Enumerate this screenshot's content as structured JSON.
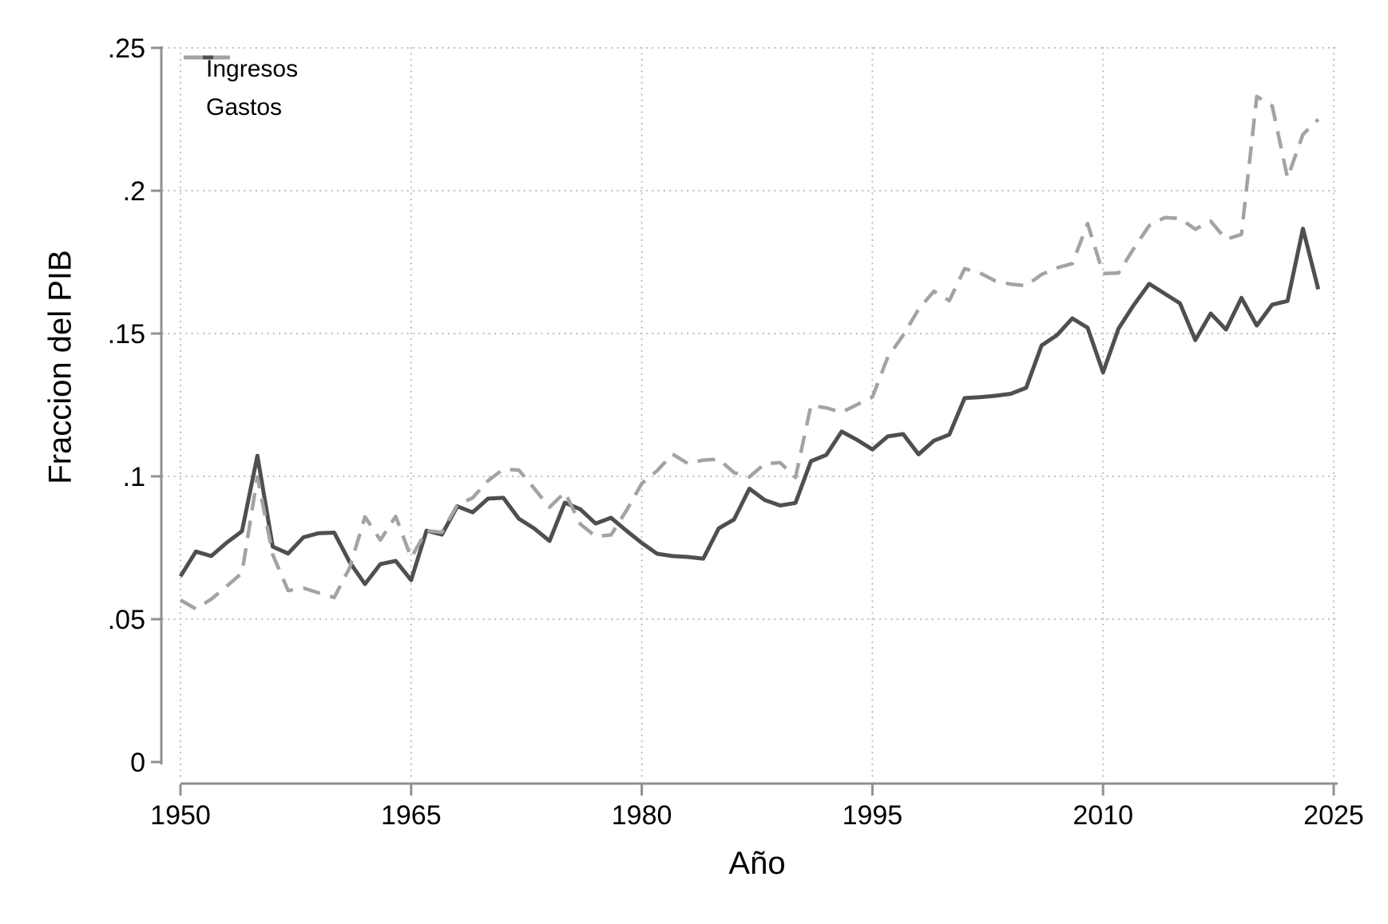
{
  "chart_data": {
    "type": "line",
    "title": "",
    "xlabel": "Año",
    "ylabel": "Fraccion del PIB",
    "legend_position": "top-left-inside",
    "grid": "dotted",
    "xlim": [
      1948.7,
      2025.4
    ],
    "ylim": [
      0,
      0.25
    ],
    "x_ticks": [
      1950,
      1965,
      1980,
      1995,
      2010,
      2025
    ],
    "y_ticks": [
      0,
      0.05,
      0.1,
      0.15,
      0.2,
      0.25
    ],
    "y_tick_labels": [
      "0",
      ".05",
      ".1",
      ".15",
      ".2",
      ".25"
    ],
    "colors": {
      "axis": "#909090",
      "grid": "#bdbdbd",
      "text": "#000000",
      "background": "#ffffff"
    },
    "x": [
      1950,
      1951,
      1952,
      1953,
      1954,
      1955,
      1956,
      1957,
      1958,
      1959,
      1960,
      1961,
      1962,
      1963,
      1964,
      1965,
      1966,
      1967,
      1968,
      1969,
      1970,
      1971,
      1972,
      1973,
      1974,
      1975,
      1976,
      1977,
      1978,
      1979,
      1980,
      1981,
      1982,
      1983,
      1984,
      1985,
      1986,
      1987,
      1988,
      1989,
      1990,
      1991,
      1992,
      1993,
      1994,
      1995,
      1996,
      1997,
      1998,
      1999,
      2000,
      2001,
      2002,
      2003,
      2004,
      2005,
      2006,
      2007,
      2008,
      2009,
      2010,
      2011,
      2012,
      2013,
      2014,
      2015,
      2016,
      2017,
      2018,
      2019,
      2020,
      2021,
      2022,
      2023,
      2024
    ],
    "series": [
      {
        "name": "Ingresos",
        "style": "solid",
        "color": "#4f4f4f",
        "values": [
          0.065,
          0.0737,
          0.0721,
          0.0768,
          0.0808,
          0.1072,
          0.0754,
          0.073,
          0.0787,
          0.0801,
          0.0803,
          0.07,
          0.0623,
          0.0693,
          0.0704,
          0.0637,
          0.081,
          0.0796,
          0.0895,
          0.0874,
          0.0922,
          0.0925,
          0.0852,
          0.0818,
          0.0774,
          0.0908,
          0.0885,
          0.0835,
          0.0855,
          0.081,
          0.0767,
          0.0729,
          0.0721,
          0.0718,
          0.0712,
          0.0818,
          0.0849,
          0.0957,
          0.0917,
          0.0898,
          0.0907,
          0.1053,
          0.1075,
          0.1157,
          0.1128,
          0.1094,
          0.114,
          0.1148,
          0.1077,
          0.1125,
          0.1146,
          0.1274,
          0.1277,
          0.1282,
          0.1289,
          0.131,
          0.1458,
          0.1494,
          0.1553,
          0.152,
          0.1364,
          0.1517,
          0.16,
          0.1674,
          0.164,
          0.1606,
          0.1477,
          0.157,
          0.1514,
          0.1625,
          0.1528,
          0.1601,
          0.1614,
          0.1867,
          0.1655
        ]
      },
      {
        "name": "Gastos",
        "style": "dashed",
        "color": "#a3a3a3",
        "values": [
          0.0567,
          0.0536,
          0.057,
          0.0615,
          0.0662,
          0.0998,
          0.0726,
          0.06,
          0.0609,
          0.0592,
          0.0576,
          0.068,
          0.0858,
          0.0777,
          0.086,
          0.0715,
          0.081,
          0.0804,
          0.09,
          0.0925,
          0.0985,
          0.1025,
          0.1022,
          0.0958,
          0.0892,
          0.0944,
          0.0833,
          0.079,
          0.0795,
          0.088,
          0.0975,
          0.102,
          0.1078,
          0.1045,
          0.1057,
          0.106,
          0.1013,
          0.0998,
          0.1044,
          0.1048,
          0.0996,
          0.1248,
          0.124,
          0.1224,
          0.1251,
          0.1278,
          0.1418,
          0.1494,
          0.1585,
          0.1648,
          0.1615,
          0.1727,
          0.1712,
          0.1684,
          0.1673,
          0.1667,
          0.1707,
          0.173,
          0.1745,
          0.1885,
          0.171,
          0.1712,
          0.1798,
          0.1878,
          0.1906,
          0.1903,
          0.1865,
          0.1893,
          0.183,
          0.1847,
          0.233,
          0.2297,
          0.2045,
          0.2197,
          0.225
        ]
      }
    ]
  }
}
